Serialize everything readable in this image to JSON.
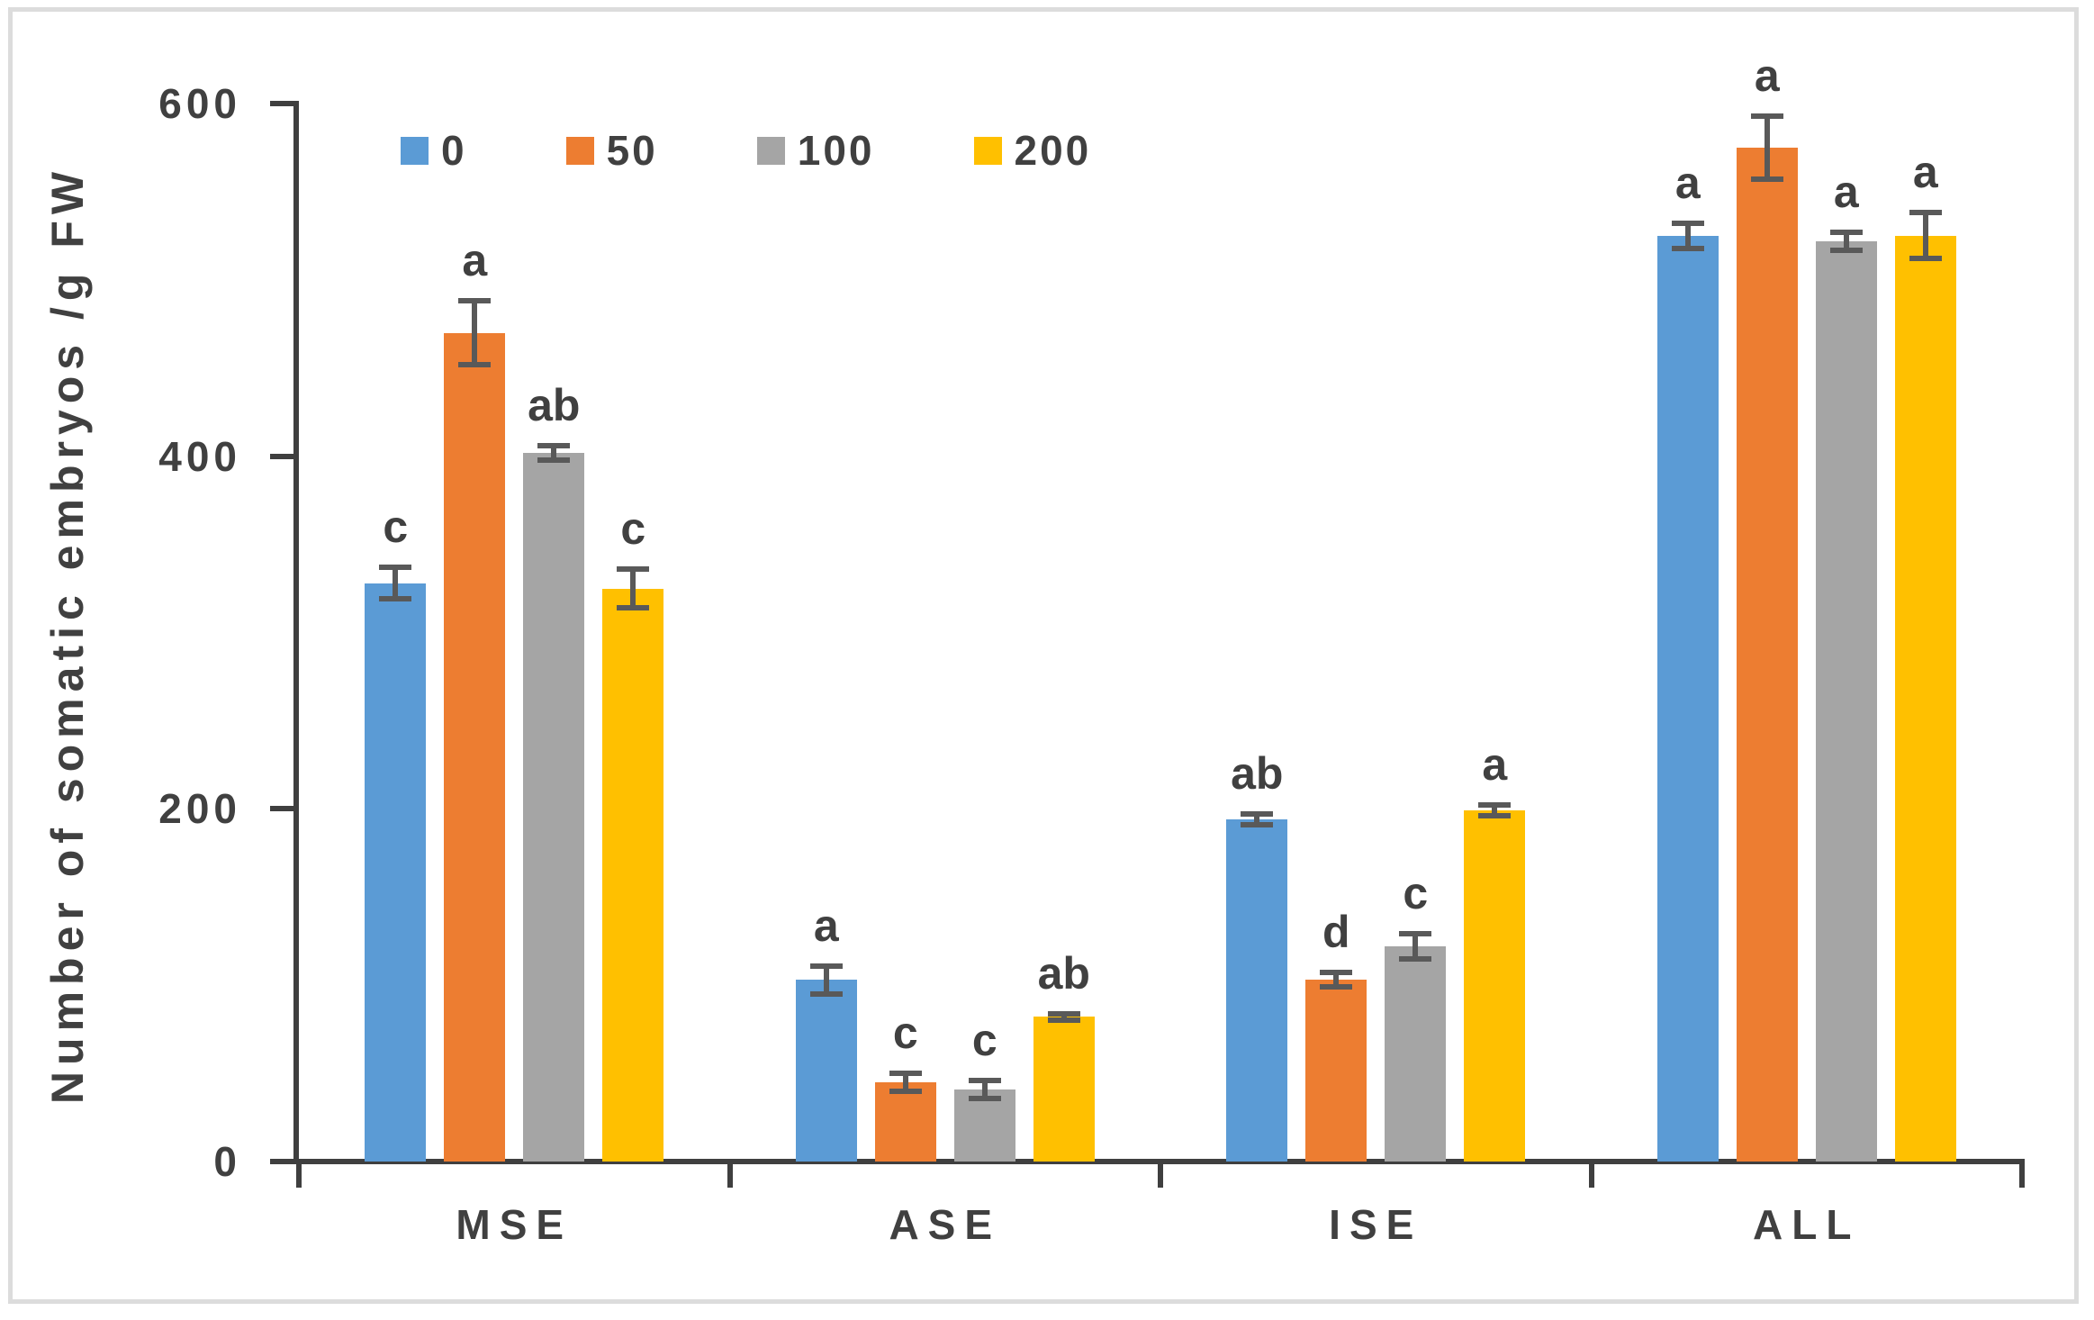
{
  "figure": {
    "background": "#ffffff",
    "border_color": "#dcdcdc"
  },
  "chart_data": {
    "type": "bar",
    "title": "",
    "ylabel": "Number of somatic embryos /g FW",
    "xlabel": "",
    "categories": [
      "MSE",
      "ASE",
      "ISE",
      "ALL"
    ],
    "series": [
      {
        "name": "0",
        "color": "#5B9BD5",
        "values": [
          328,
          103,
          194,
          525
        ],
        "errors": [
          9,
          8,
          3,
          7
        ],
        "letters": [
          "c",
          "a",
          "ab",
          "a"
        ]
      },
      {
        "name": "50",
        "color": "#ED7D31",
        "values": [
          470,
          45,
          103,
          575
        ],
        "errors": [
          18,
          5,
          4,
          18
        ],
        "letters": [
          "a",
          "c",
          "d",
          "a"
        ]
      },
      {
        "name": "100",
        "color": "#A5A5A5",
        "values": [
          402,
          41,
          122,
          522
        ],
        "errors": [
          4,
          5,
          7,
          5
        ],
        "letters": [
          "ab",
          "c",
          "c",
          "a"
        ]
      },
      {
        "name": "200",
        "color": "#FFC000",
        "values": [
          325,
          82,
          199,
          525
        ],
        "errors": [
          11,
          2,
          3,
          13
        ],
        "letters": [
          "c",
          "ab",
          "a",
          "a"
        ]
      }
    ],
    "ylim": [
      0,
      600
    ],
    "yticks": [
      0,
      200,
      400,
      600
    ],
    "grid": false,
    "error_bars": true,
    "annotation_type": "significance letters above error bars",
    "legend_position": "top",
    "colors": {
      "axis": "#3f3f3f",
      "error_bar": "#595959",
      "text": "#404040"
    }
  }
}
